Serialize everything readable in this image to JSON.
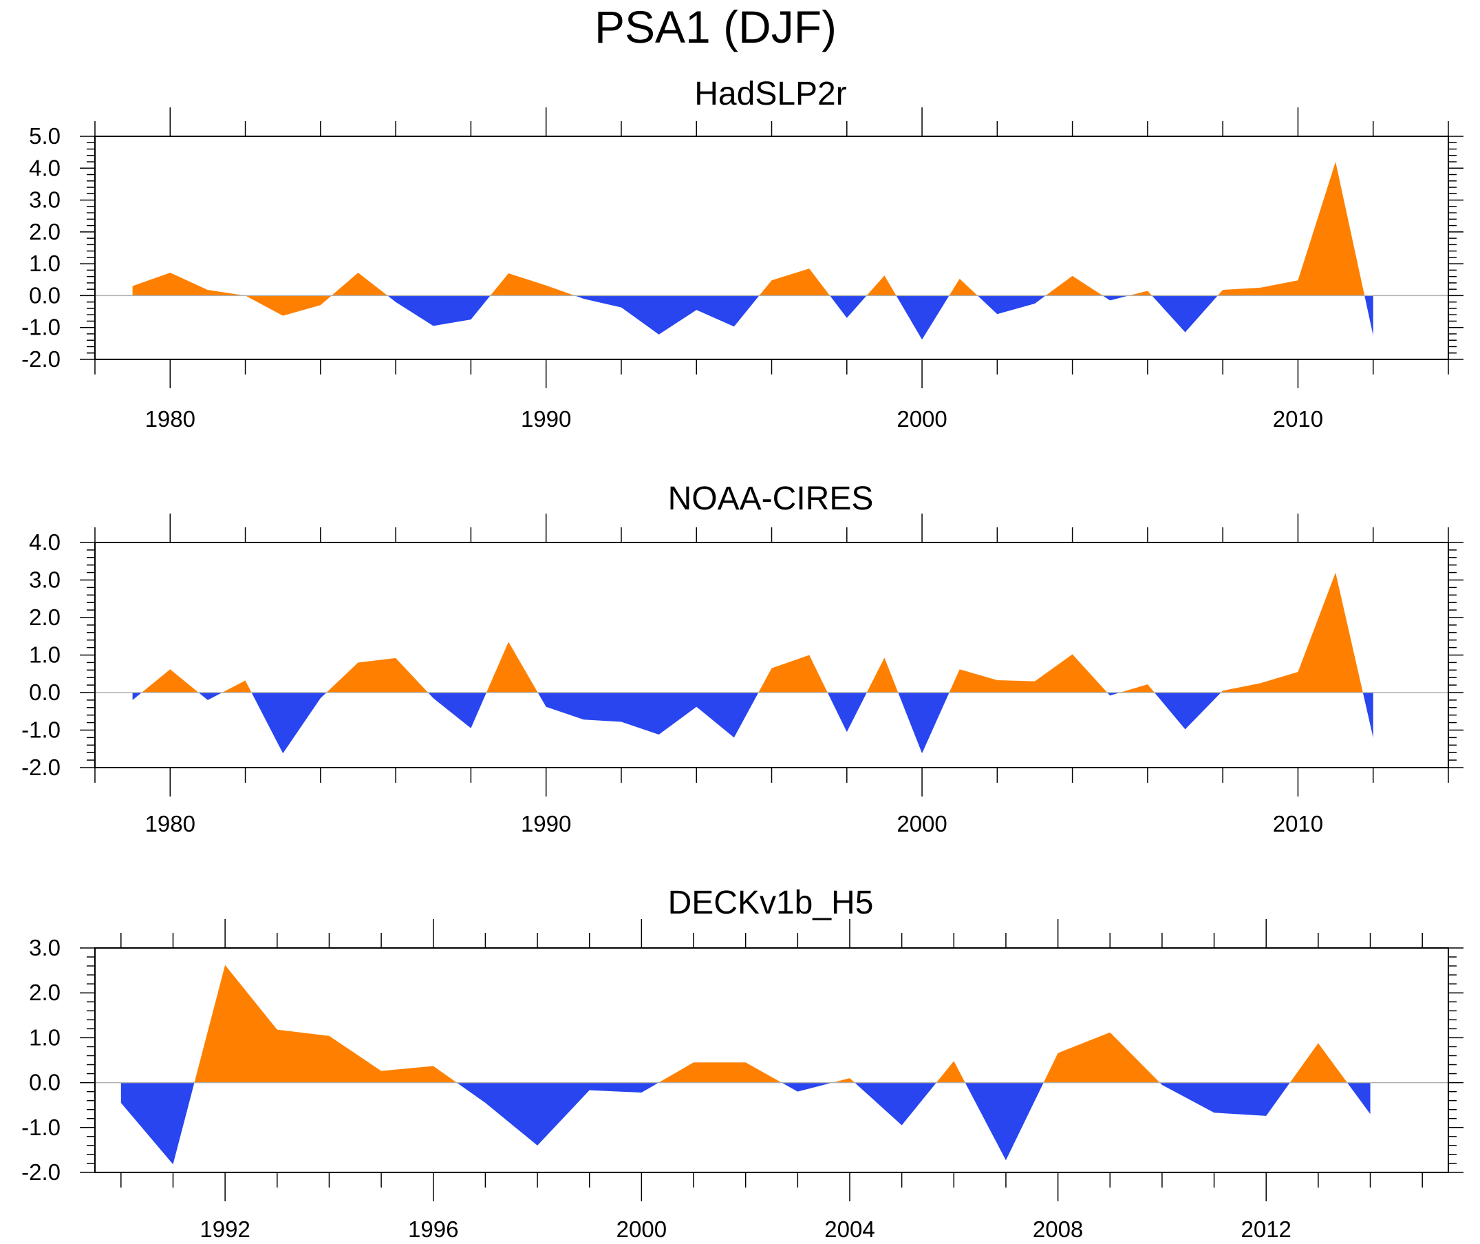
{
  "title": "PSA1 (DJF)",
  "colors": {
    "positive": "#ff8000",
    "negative": "#2845f0",
    "axis": "#000000",
    "zero_line": "#b0b0b0"
  },
  "chart_data": [
    {
      "type": "area",
      "title": "HadSLP2r",
      "xlabel": "",
      "ylabel": "",
      "xlim": [
        1978,
        2014
      ],
      "ylim": [
        -2.0,
        5.0
      ],
      "yticks": [
        5.0,
        4.0,
        3.0,
        2.0,
        1.0,
        0.0,
        -1.0,
        -2.0
      ],
      "ytick_labels": [
        "5.0",
        "4.0",
        "3.0",
        "2.0",
        "1.0",
        "0.0",
        "-1.0",
        "-2.0"
      ],
      "xtick_labels": [
        "1980",
        "1990",
        "2000",
        "2010"
      ],
      "x": [
        1979,
        1980,
        1981,
        1982,
        1983,
        1984,
        1985,
        1986,
        1987,
        1988,
        1989,
        1990,
        1991,
        1992,
        1993,
        1994,
        1995,
        1996,
        1997,
        1998,
        1999,
        2000,
        2001,
        2002,
        2003,
        2004,
        2005,
        2006,
        2007,
        2008,
        2009,
        2010,
        2011,
        2012
      ],
      "values": [
        0.3,
        0.72,
        0.18,
        0.0,
        -0.63,
        -0.3,
        0.72,
        -0.2,
        -0.95,
        -0.75,
        0.7,
        0.32,
        -0.1,
        -0.37,
        -1.22,
        -0.45,
        -0.97,
        0.48,
        0.85,
        -0.7,
        0.63,
        -1.38,
        0.53,
        -0.58,
        -0.25,
        0.62,
        -0.15,
        0.15,
        -1.15,
        0.18,
        0.25,
        0.48,
        4.2,
        -1.25
      ]
    },
    {
      "type": "area",
      "title": "NOAA-CIRES",
      "xlabel": "",
      "ylabel": "",
      "xlim": [
        1978,
        2014
      ],
      "ylim": [
        -2.0,
        4.0
      ],
      "yticks": [
        4.0,
        3.0,
        2.0,
        1.0,
        0.0,
        -1.0,
        -2.0
      ],
      "ytick_labels": [
        "4.0",
        "3.0",
        "2.0",
        "1.0",
        "0.0",
        "-1.0",
        "-2.0"
      ],
      "xtick_labels": [
        "1980",
        "1990",
        "2000",
        "2010"
      ],
      "x": [
        1979,
        1980,
        1981,
        1982,
        1983,
        1984,
        1985,
        1986,
        1987,
        1988,
        1989,
        1990,
        1991,
        1992,
        1993,
        1994,
        1995,
        1996,
        1997,
        1998,
        1999,
        2000,
        2001,
        2002,
        2003,
        2004,
        2005,
        2006,
        2007,
        2008,
        2009,
        2010,
        2011,
        2012
      ],
      "values": [
        -0.2,
        0.62,
        -0.2,
        0.32,
        -1.62,
        -0.15,
        0.8,
        0.92,
        -0.15,
        -0.95,
        1.35,
        -0.38,
        -0.72,
        -0.78,
        -1.12,
        -0.38,
        -1.2,
        0.65,
        1.0,
        -1.05,
        0.93,
        -1.62,
        0.62,
        0.33,
        0.3,
        1.02,
        -0.08,
        0.22,
        -0.98,
        0.05,
        0.25,
        0.55,
        3.2,
        -1.2
      ]
    },
    {
      "type": "area",
      "title": "DECKv1b_H5",
      "xlabel": "",
      "ylabel": "",
      "xlim": [
        1989.5,
        2015.5
      ],
      "ylim": [
        -2.0,
        3.0
      ],
      "yticks": [
        3.0,
        2.0,
        1.0,
        0.0,
        -1.0,
        -2.0
      ],
      "ytick_labels": [
        "3.0",
        "2.0",
        "1.0",
        "0.0",
        "-1.0",
        "-2.0"
      ],
      "xtick_labels": [
        "1992",
        "1996",
        "2000",
        "2004",
        "2008",
        "2012"
      ],
      "x": [
        1990,
        1991,
        1992,
        1993,
        1994,
        1995,
        1996,
        1997,
        1998,
        1999,
        2000,
        2001,
        2002,
        2003,
        2004,
        2005,
        2006,
        2007,
        2008,
        2009,
        2010,
        2011,
        2012,
        2013,
        2014
      ],
      "values": [
        -0.45,
        -1.82,
        2.62,
        1.18,
        1.04,
        0.26,
        0.37,
        -0.45,
        -1.4,
        -0.17,
        -0.22,
        0.45,
        0.45,
        -0.2,
        0.1,
        -0.95,
        0.48,
        -1.73,
        0.66,
        1.12,
        -0.05,
        -0.67,
        -0.74,
        0.88,
        -0.7
      ]
    }
  ]
}
